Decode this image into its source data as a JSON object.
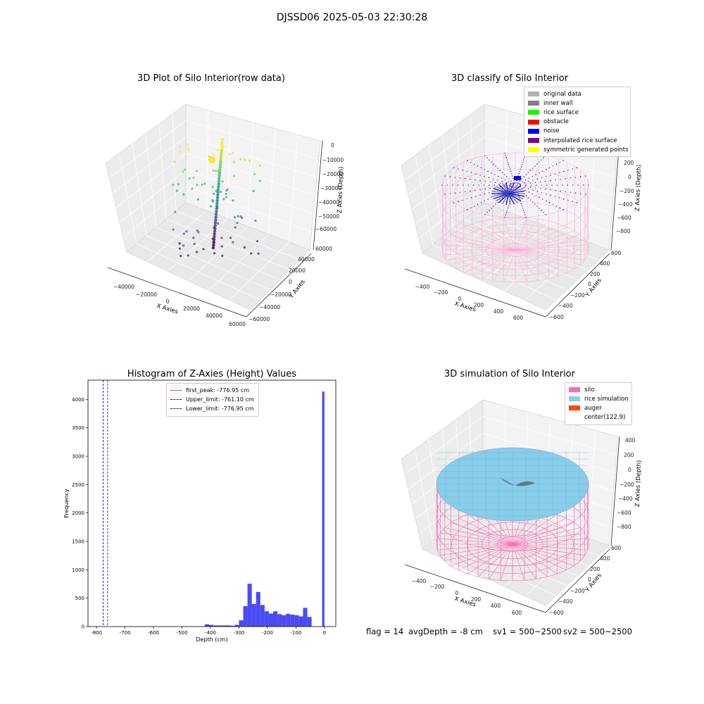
{
  "figure_title": "DJSSD06 2025-05-03 22:30:28",
  "footer": {
    "flag": "flag = 14",
    "avg_depth": "avgDepth = -8 cm",
    "sv1": "sv1 = 500~2500",
    "sv2": "sv2 = 500~2500"
  },
  "colors": {
    "silo": "#ff69b4",
    "rice_simulation": "#87ceeb",
    "auger": "#ff4500",
    "hist_bar": "#4b4bf5",
    "first_peak_line": "#ff0000",
    "limit_lines": "#0000ff",
    "original_data": "#b0b0b0",
    "inner_wall": "#808080",
    "rice_surface": "#00ff00",
    "obstacle": "#ff0000",
    "noise": "#0000ff",
    "interpolated_rice_surface": "#800080",
    "symmetric_generated_points": "#ffff00"
  },
  "chart_data": [
    {
      "type": "scatter",
      "projection": "3d",
      "title": "3D Plot of Silo Interior(row data)",
      "xlabel": "X Axies",
      "ylabel": "Y Axies",
      "zlabel": "Z Axies (Depth)",
      "x_ticks": [
        "−40000",
        "−20000",
        "0",
        "20000",
        "40000",
        "60000"
      ],
      "y_ticks": [
        "−60000",
        "−40000",
        "−20000",
        "0",
        "20000",
        "40000",
        "60000"
      ],
      "z_ticks": [
        "−60000",
        "−50000",
        "−40000",
        "−30000",
        "−20000",
        "−10000",
        "0"
      ],
      "colormap": "viridis"
    },
    {
      "type": "scatter",
      "projection": "3d",
      "title": "3D classify of Silo Interior",
      "xlabel": "X Axies",
      "ylabel": "Y Axies",
      "zlabel": "Z Axies (Depth)",
      "x_ticks": [
        "−400",
        "−200",
        "0",
        "200",
        "400",
        "600"
      ],
      "y_ticks": [
        "−600",
        "−400",
        "−200",
        "0",
        "200",
        "400",
        "600"
      ],
      "z_ticks": [
        "−800",
        "−600",
        "−400",
        "−200",
        "0",
        "200"
      ],
      "legend_placement": "upper right",
      "legend": [
        {
          "label": "original data",
          "color": "#b0b0b0"
        },
        {
          "label": "inner wall",
          "color": "#808080"
        },
        {
          "label": "rice surface",
          "color": "#00ff00"
        },
        {
          "label": "obstacle",
          "color": "#ff0000"
        },
        {
          "label": "noise",
          "color": "#0000ff"
        },
        {
          "label": "interpolated rice surface",
          "color": "#800080"
        },
        {
          "label": "symmetric generated points",
          "color": "#ffff00"
        }
      ]
    },
    {
      "type": "bar",
      "title": "Histogram of Z-Axies (Height) Values",
      "xlabel": "Depth (cm)",
      "ylabel": "Frequency",
      "xlim": [
        -830,
        40
      ],
      "ylim": [
        0,
        4340
      ],
      "x_ticks": [
        -800,
        -700,
        -600,
        -500,
        -400,
        -300,
        -200,
        -100,
        0
      ],
      "y_ticks": [
        0,
        500,
        1000,
        1500,
        2000,
        2500,
        3000,
        3500,
        4000
      ],
      "bins": [
        {
          "x0": -420,
          "x1": -405,
          "count": 40
        },
        {
          "x0": -405,
          "x1": -390,
          "count": 30
        },
        {
          "x0": -390,
          "x1": -375,
          "count": 20
        },
        {
          "x0": -375,
          "x1": -360,
          "count": 20
        },
        {
          "x0": -360,
          "x1": -345,
          "count": 20
        },
        {
          "x0": -345,
          "x1": -330,
          "count": 20
        },
        {
          "x0": -330,
          "x1": -315,
          "count": 15
        },
        {
          "x0": -315,
          "x1": -300,
          "count": 30
        },
        {
          "x0": -300,
          "x1": -285,
          "count": 110
        },
        {
          "x0": -285,
          "x1": -270,
          "count": 360
        },
        {
          "x0": -270,
          "x1": -255,
          "count": 755
        },
        {
          "x0": -255,
          "x1": -240,
          "count": 400
        },
        {
          "x0": -240,
          "x1": -225,
          "count": 610
        },
        {
          "x0": -225,
          "x1": -210,
          "count": 380
        },
        {
          "x0": -210,
          "x1": -195,
          "count": 270
        },
        {
          "x0": -195,
          "x1": -180,
          "count": 230
        },
        {
          "x0": -180,
          "x1": -165,
          "count": 270
        },
        {
          "x0": -165,
          "x1": -150,
          "count": 220
        },
        {
          "x0": -150,
          "x1": -135,
          "count": 200
        },
        {
          "x0": -135,
          "x1": -120,
          "count": 225
        },
        {
          "x0": -120,
          "x1": -105,
          "count": 210
        },
        {
          "x0": -105,
          "x1": -90,
          "count": 200
        },
        {
          "x0": -90,
          "x1": -75,
          "count": 180
        },
        {
          "x0": -75,
          "x1": -60,
          "count": 330
        },
        {
          "x0": -60,
          "x1": -45,
          "count": 170
        },
        {
          "x0": -8,
          "x1": 0,
          "count": 4140
        }
      ],
      "lines": [
        {
          "label": "first_peak: -776.95 cm",
          "x": -776.95,
          "color": "#ff0000",
          "style": "dashed"
        },
        {
          "label": "Upper_limit: -761.10 cm",
          "x": -761.1,
          "color": "#0000ff",
          "style": "dashed"
        },
        {
          "label": "Lower_limit: -776.95 cm",
          "x": -776.95,
          "color": "#0000ff",
          "style": "dashed"
        }
      ],
      "legend_placement": "upper center"
    },
    {
      "type": "scatter",
      "projection": "3d",
      "title": "3D simulation of Silo Interior",
      "xlabel": "X Axies",
      "ylabel": "Y Axies",
      "zlabel": "Z Axies (Depth)",
      "x_ticks": [
        "−400",
        "−200",
        "0",
        "200",
        "400",
        "600"
      ],
      "y_ticks": [
        "−600",
        "−400",
        "−200",
        "0",
        "200",
        "400",
        "600"
      ],
      "z_ticks": [
        "−800",
        "−600",
        "−400",
        "−200",
        "0",
        "200",
        "400"
      ],
      "legend_placement": "upper right",
      "legend": [
        {
          "label": "silo",
          "color": "#ff69b4"
        },
        {
          "label": "rice simulation",
          "color": "#87ceeb"
        },
        {
          "label": "auger",
          "color": "#ff4500"
        },
        {
          "label": "center(122,9)",
          "color": "#ffffff"
        }
      ]
    }
  ]
}
